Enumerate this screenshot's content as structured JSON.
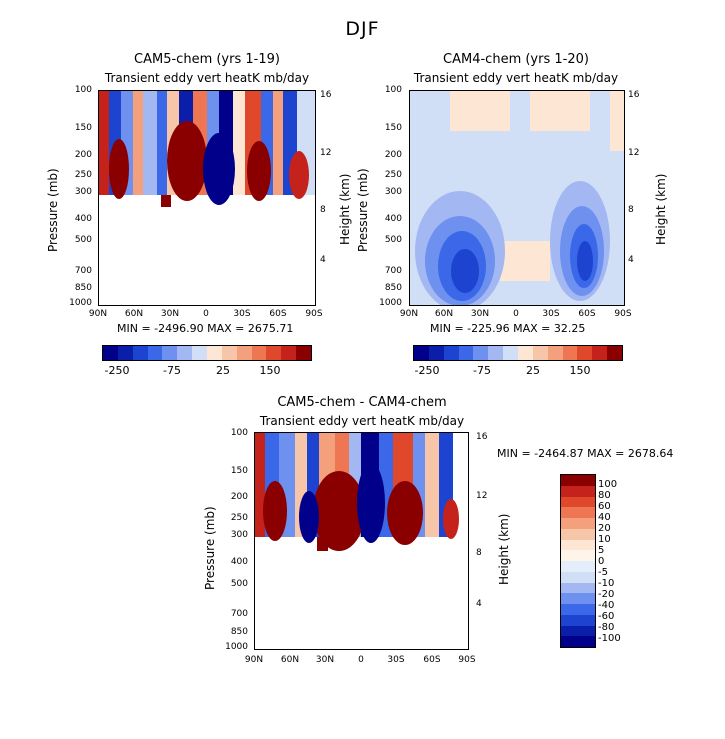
{
  "suptitle": "DJF",
  "colors": [
    "#00008b",
    "#0a1eaa",
    "#1c44d0",
    "#3a68e8",
    "#6e91ef",
    "#a3b8f2",
    "#d0dff6",
    "#fde6d3",
    "#f7c6a8",
    "#f4a07d",
    "#ee7652",
    "#e0482c",
    "#c4221a",
    "#8a0000"
  ],
  "panels": [
    {
      "title": "CAM5-chem (yrs 1-19)",
      "subtitle": "Transient eddy vert heatK mb/day",
      "stats": "MIN = -2496.90   MAX = 2675.71"
    },
    {
      "title": "CAM4-chem (yrs 1-20)",
      "subtitle": "Transient eddy vert heatK mb/day",
      "stats": "MIN = -225.96   MAX =   32.25"
    },
    {
      "title": "CAM5-chem - CAM4-chem",
      "subtitle": "Transient eddy vert heatK mb/day",
      "stats": "MIN = -2464.87   MAX = 2678.64"
    }
  ],
  "axes": {
    "ylabel": "Pressure (mb)",
    "rlabel": "Height (km)",
    "pressure_ticks": [
      "100",
      "150",
      "200",
      "250",
      "300",
      "400",
      "500",
      "700",
      "850",
      "1000"
    ],
    "lat_ticks": [
      "90N",
      "60N",
      "30N",
      "0",
      "30S",
      "60S",
      "90S"
    ],
    "height_ticks": [
      "16",
      "12",
      "8",
      "4"
    ]
  },
  "colorbar_h": {
    "labels": [
      "-250",
      "-75",
      "25",
      "150"
    ]
  },
  "colorbar_v": {
    "labels": [
      "100",
      "80",
      "60",
      "40",
      "20",
      "10",
      "5",
      "0",
      "-5",
      "-10",
      "-20",
      "-40",
      "-60",
      "-80",
      "-100"
    ]
  },
  "chart_data": [
    {
      "type": "heatmap",
      "title": "CAM5-chem (yrs 1-19)",
      "subtitle": "Transient eddy vert heatK mb/day",
      "xlabel": "",
      "ylabel": "Pressure (mb)",
      "y2label": "Height (km)",
      "x_ticks": [
        "90N",
        "60N",
        "30N",
        "0",
        "30S",
        "60S",
        "90S"
      ],
      "y_range_mb": [
        1000,
        100
      ],
      "min": -2496.9,
      "max": 2675.71,
      "colorbar_labels": [
        "-250",
        "-75",
        "25",
        "150"
      ],
      "lat_columns": [
        -90,
        -80,
        -70,
        -60,
        -50,
        -40,
        -30,
        -20,
        -10,
        0,
        10,
        20,
        30,
        40,
        50,
        60,
        70,
        80,
        90
      ],
      "profiles_100_300mb": [
        200,
        -150,
        -30,
        40,
        400,
        -400,
        20,
        -20,
        600,
        700,
        -600,
        -700,
        50,
        -20,
        500,
        -300,
        100,
        -50,
        300
      ],
      "data_top_mb": 300
    },
    {
      "type": "heatmap",
      "title": "CAM4-chem (yrs 1-20)",
      "subtitle": "Transient eddy vert heatK mb/day",
      "xlabel": "",
      "ylabel": "Pressure (mb)",
      "y2label": "Height (km)",
      "x_ticks": [
        "90N",
        "60N",
        "30N",
        "0",
        "30S",
        "60S",
        "90S"
      ],
      "y_range_mb": [
        1000,
        100
      ],
      "min": -225.96,
      "max": 32.25,
      "colorbar_labels": [
        "-250",
        "-75",
        "25",
        "150"
      ]
    },
    {
      "type": "heatmap",
      "title": "CAM5-chem - CAM4-chem",
      "subtitle": "Transient eddy vert heatK mb/day",
      "xlabel": "",
      "ylabel": "Pressure (mb)",
      "y2label": "Height (km)",
      "x_ticks": [
        "90N",
        "60N",
        "30N",
        "0",
        "30S",
        "60S",
        "90S"
      ],
      "y_range_mb": [
        1000,
        100
      ],
      "min": -2464.87,
      "max": 2678.64,
      "colorbar_labels": [
        "100",
        "80",
        "60",
        "40",
        "20",
        "10",
        "5",
        "0",
        "-5",
        "-10",
        "-20",
        "-40",
        "-60",
        "-80",
        "-100"
      ],
      "data_top_mb": 300
    }
  ]
}
